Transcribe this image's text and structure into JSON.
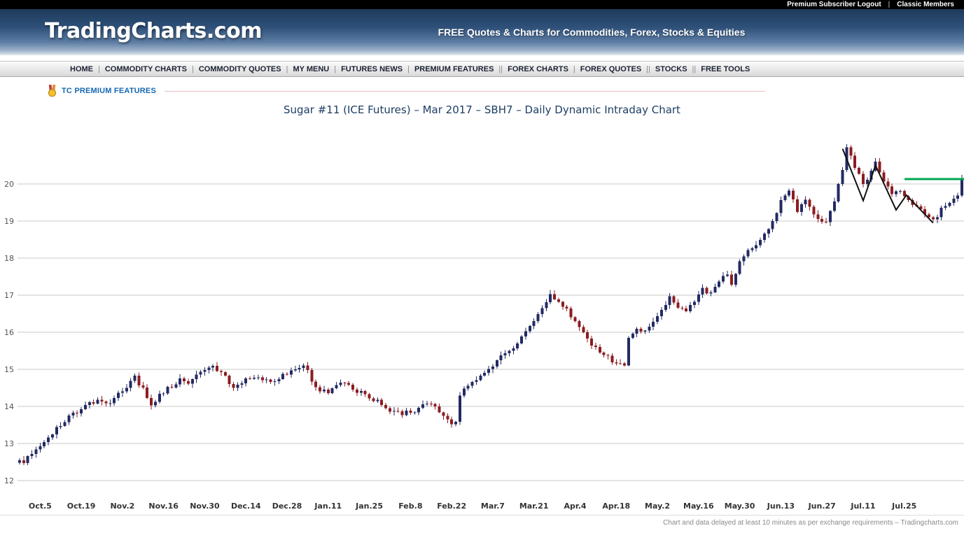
{
  "top_bar": {
    "logout_label": "Premium Subscriber Logout",
    "separator": "|",
    "classic_members_label": "Classic Members"
  },
  "header": {
    "logo": "TradingCharts.com",
    "tagline": "FREE Quotes & Charts for Commodities, Forex, Stocks & Equities"
  },
  "nav": {
    "items": [
      {
        "label": "HOME",
        "sep_after": "|"
      },
      {
        "label": "COMMODITY CHARTS",
        "sep_after": "|"
      },
      {
        "label": "COMMODITY QUOTES",
        "sep_after": "|"
      },
      {
        "label": "MY MENU",
        "sep_after": "|"
      },
      {
        "label": "FUTURES NEWS",
        "sep_after": "|"
      },
      {
        "label": "PREMIUM FEATURES",
        "sep_after": "||"
      },
      {
        "label": "FOREX CHARTS",
        "sep_after": "|"
      },
      {
        "label": "FOREX QUOTES",
        "sep_after": "||"
      },
      {
        "label": "STOCKS",
        "sep_after": "||"
      },
      {
        "label": "FREE TOOLS",
        "sep_after": ""
      }
    ]
  },
  "premium_row": {
    "icon": "medal-icon",
    "label": "TC PREMIUM FEATURES",
    "accent_color": "#1568b3",
    "rule_color": "#e6bcbc"
  },
  "chart_data": {
    "type": "candlestick",
    "title": "Sugar #11 (ICE Futures) – Mar 2017 – SBH7 – Daily Dynamic Intraday Chart",
    "ylabel": "",
    "xlabel": "",
    "ylim": [
      11.6,
      21.3
    ],
    "y_ticks": [
      12,
      13,
      14,
      15,
      16,
      17,
      18,
      19,
      20
    ],
    "x_tick_labels": [
      "Oct.5",
      "Oct.19",
      "Nov.2",
      "Nov.16",
      "Nov.30",
      "Dec.14",
      "Dec.28",
      "Jan.11",
      "Jan.25",
      "Feb.8",
      "Feb.22",
      "Mar.7",
      "Mar.21",
      "Apr.4",
      "Apr.18",
      "May.2",
      "May.16",
      "May.30",
      "Jun.13",
      "Jun.27",
      "Jul.11",
      "Jul.25"
    ],
    "x_tick_first_day": 5,
    "x_tick_step_days": 10,
    "total_days": 230,
    "grid": "horizontal",
    "legend": "none",
    "up_color": "#232a63",
    "down_color": "#8b1d22",
    "grid_color": "#c9c9c9",
    "price_path_anchors": [
      [
        0,
        12.55
      ],
      [
        1,
        12.45
      ],
      [
        3,
        12.75
      ],
      [
        5,
        12.95
      ],
      [
        8,
        13.3
      ],
      [
        10,
        13.5
      ],
      [
        12,
        13.7
      ],
      [
        15,
        13.95
      ],
      [
        17,
        14.1
      ],
      [
        19,
        14.15
      ],
      [
        21,
        14.05
      ],
      [
        23,
        14.2
      ],
      [
        25,
        14.4
      ],
      [
        28,
        14.8
      ],
      [
        30,
        14.45
      ],
      [
        32,
        14.05
      ],
      [
        34,
        14.3
      ],
      [
        36,
        14.5
      ],
      [
        39,
        14.7
      ],
      [
        41,
        14.6
      ],
      [
        44,
        14.9
      ],
      [
        47,
        15.05
      ],
      [
        49,
        14.9
      ],
      [
        52,
        14.5
      ],
      [
        55,
        14.75
      ],
      [
        58,
        14.8
      ],
      [
        61,
        14.65
      ],
      [
        64,
        14.85
      ],
      [
        67,
        15.0
      ],
      [
        69,
        15.15
      ],
      [
        71,
        14.7
      ],
      [
        73,
        14.45
      ],
      [
        75,
        14.35
      ],
      [
        77,
        14.55
      ],
      [
        79,
        14.65
      ],
      [
        81,
        14.5
      ],
      [
        83,
        14.35
      ],
      [
        85,
        14.25
      ],
      [
        87,
        14.15
      ],
      [
        89,
        13.95
      ],
      [
        91,
        13.85
      ],
      [
        93,
        13.8
      ],
      [
        95,
        13.85
      ],
      [
        97,
        13.95
      ],
      [
        99,
        14.1
      ],
      [
        101,
        14.05
      ],
      [
        103,
        13.7
      ],
      [
        105,
        13.55
      ],
      [
        106,
        13.6
      ],
      [
        107,
        14.35
      ],
      [
        109,
        14.5
      ],
      [
        111,
        14.75
      ],
      [
        113,
        14.9
      ],
      [
        116,
        15.25
      ],
      [
        118,
        15.4
      ],
      [
        120,
        15.5
      ],
      [
        122,
        15.85
      ],
      [
        124,
        16.2
      ],
      [
        126,
        16.5
      ],
      [
        128,
        16.8
      ],
      [
        129,
        17.0
      ],
      [
        131,
        16.85
      ],
      [
        133,
        16.65
      ],
      [
        135,
        16.25
      ],
      [
        137,
        15.95
      ],
      [
        139,
        15.7
      ],
      [
        141,
        15.5
      ],
      [
        143,
        15.35
      ],
      [
        145,
        15.15
      ],
      [
        147,
        15.1
      ],
      [
        148,
        15.85
      ],
      [
        150,
        16.1
      ],
      [
        152,
        16.0
      ],
      [
        154,
        16.3
      ],
      [
        156,
        16.55
      ],
      [
        158,
        16.95
      ],
      [
        160,
        16.7
      ],
      [
        162,
        16.55
      ],
      [
        164,
        16.85
      ],
      [
        166,
        17.15
      ],
      [
        168,
        17.05
      ],
      [
        170,
        17.4
      ],
      [
        172,
        17.55
      ],
      [
        173,
        17.3
      ],
      [
        175,
        17.95
      ],
      [
        177,
        18.25
      ],
      [
        179,
        18.35
      ],
      [
        181,
        18.6
      ],
      [
        183,
        19.0
      ],
      [
        185,
        19.5
      ],
      [
        187,
        19.8
      ],
      [
        189,
        19.3
      ],
      [
        191,
        19.55
      ],
      [
        193,
        19.2
      ],
      [
        196,
        18.95
      ],
      [
        198,
        19.5
      ],
      [
        200,
        20.4
      ],
      [
        201,
        20.95
      ],
      [
        203,
        20.5
      ],
      [
        205,
        19.95
      ],
      [
        207,
        20.3
      ],
      [
        208,
        20.55
      ],
      [
        210,
        20.1
      ],
      [
        212,
        19.75
      ],
      [
        214,
        19.85
      ],
      [
        216,
        19.6
      ],
      [
        218,
        19.4
      ],
      [
        220,
        19.15
      ],
      [
        222,
        19.0
      ],
      [
        224,
        19.3
      ],
      [
        226,
        19.45
      ],
      [
        228,
        19.65
      ],
      [
        229,
        20.15
      ]
    ],
    "annotations": {
      "resistance_line": {
        "price": 20.13,
        "from_day": 215,
        "color": "#00a651",
        "width": 3
      },
      "trend_zigzag": {
        "color": "#111111",
        "width": 2,
        "points": [
          [
            200,
            20.95
          ],
          [
            205,
            19.55
          ],
          [
            208,
            20.5
          ],
          [
            213,
            19.3
          ],
          [
            215.5,
            19.7
          ],
          [
            222,
            18.95
          ]
        ]
      }
    }
  },
  "footer": {
    "disclaimer": "Chart and data delayed at least 10 minutes as per exchange requirements – Tradingcharts.com"
  }
}
